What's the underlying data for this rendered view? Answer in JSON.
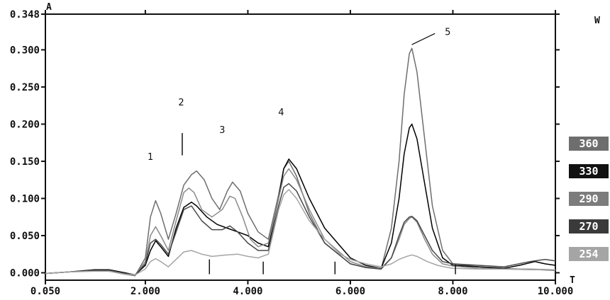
{
  "chart_data": {
    "type": "line",
    "title": "",
    "xlabel": "T",
    "ylabel": "A",
    "right_label": "W",
    "xlim": [
      0.05,
      10.0
    ],
    "ylim": [
      -0.01,
      0.348
    ],
    "x_tick_labels": [
      {
        "value": 0.05,
        "label": "0.050"
      },
      {
        "value": 2.0,
        "label": "2.000"
      },
      {
        "value": 4.0,
        "label": "4.000"
      },
      {
        "value": 6.0,
        "label": "6.000"
      },
      {
        "value": 8.0,
        "label": "8.000"
      },
      {
        "value": 10.0,
        "label": "10.000"
      }
    ],
    "y_tick_labels": [
      {
        "value": 0.348,
        "label": "0.348"
      },
      {
        "value": 0.3,
        "label": "0.300"
      },
      {
        "value": 0.25,
        "label": "0.250"
      },
      {
        "value": 0.2,
        "label": "0.200"
      },
      {
        "value": 0.15,
        "label": "0.150"
      },
      {
        "value": 0.1,
        "label": "0.100"
      },
      {
        "value": 0.05,
        "label": "0.050"
      },
      {
        "value": 0.0,
        "label": "0.000"
      }
    ],
    "grid": false,
    "legend_placement": "right",
    "peak_labels": [
      {
        "label": "1",
        "x": 2.1,
        "y": 0.152
      },
      {
        "label": "2",
        "x": 2.7,
        "y": 0.225
      },
      {
        "label": "3",
        "x": 3.5,
        "y": 0.188
      },
      {
        "label": "4",
        "x": 4.65,
        "y": 0.212
      },
      {
        "label": "5",
        "x": 7.9,
        "y": 0.32
      }
    ],
    "peak_markers": [
      {
        "x": 2.72,
        "y_top": 0.188,
        "y_bottom": 0.158
      },
      {
        "x": 3.25,
        "y_top": 0.018,
        "y_bottom": -0.002
      },
      {
        "x": 4.3,
        "y_top": 0.015,
        "y_bottom": -0.002
      },
      {
        "x": 5.7,
        "y_top": 0.015,
        "y_bottom": -0.002
      },
      {
        "x": 8.05,
        "y_top": 0.011,
        "y_bottom": -0.002
      }
    ],
    "pointer_line": {
      "x1": 7.2,
      "y1": 0.307,
      "x2": 7.65,
      "y2": 0.322
    },
    "series": [
      {
        "name": "360",
        "color": "#6e6e6e",
        "x": [
          0.05,
          0.5,
          1.0,
          1.3,
          1.6,
          1.8,
          2.0,
          2.1,
          2.2,
          2.3,
          2.45,
          2.6,
          2.75,
          2.9,
          3.0,
          3.15,
          3.3,
          3.45,
          3.6,
          3.7,
          3.85,
          4.0,
          4.2,
          4.4,
          4.6,
          4.7,
          4.8,
          4.95,
          5.2,
          5.5,
          6.0,
          6.3,
          6.6,
          6.8,
          6.95,
          7.05,
          7.15,
          7.2,
          7.3,
          7.45,
          7.6,
          7.8,
          8.0,
          8.5,
          9.0,
          9.3,
          9.7,
          10.0
        ],
        "y": [
          -0.001,
          0.001,
          0.003,
          0.002,
          -0.002,
          -0.004,
          0.02,
          0.075,
          0.097,
          0.08,
          0.045,
          0.08,
          0.118,
          0.132,
          0.137,
          0.125,
          0.1,
          0.085,
          0.11,
          0.122,
          0.11,
          0.08,
          0.055,
          0.045,
          0.105,
          0.14,
          0.15,
          0.13,
          0.08,
          0.04,
          0.012,
          0.007,
          0.005,
          0.06,
          0.15,
          0.24,
          0.295,
          0.302,
          0.27,
          0.18,
          0.09,
          0.03,
          0.012,
          0.008,
          0.006,
          0.005,
          0.004,
          0.003
        ]
      },
      {
        "name": "330",
        "color": "#000000",
        "x": [
          0.05,
          0.5,
          1.0,
          1.3,
          1.6,
          1.8,
          2.0,
          2.1,
          2.2,
          2.3,
          2.45,
          2.6,
          2.75,
          2.9,
          3.0,
          3.2,
          3.4,
          3.6,
          3.8,
          4.0,
          4.2,
          4.4,
          4.6,
          4.7,
          4.8,
          4.95,
          5.2,
          5.5,
          6.0,
          6.3,
          6.6,
          6.8,
          6.95,
          7.05,
          7.15,
          7.2,
          7.3,
          7.45,
          7.6,
          7.8,
          8.0,
          8.5,
          9.0,
          9.3,
          9.6,
          9.8,
          10.0
        ],
        "y": [
          -0.001,
          0.001,
          0.004,
          0.004,
          0.0,
          -0.003,
          0.01,
          0.03,
          0.043,
          0.035,
          0.022,
          0.06,
          0.088,
          0.095,
          0.09,
          0.075,
          0.065,
          0.06,
          0.055,
          0.05,
          0.04,
          0.035,
          0.1,
          0.14,
          0.153,
          0.14,
          0.1,
          0.06,
          0.02,
          0.01,
          0.006,
          0.04,
          0.1,
          0.16,
          0.195,
          0.2,
          0.18,
          0.12,
          0.06,
          0.02,
          0.01,
          0.008,
          0.006,
          0.01,
          0.015,
          0.012,
          0.01
        ]
      },
      {
        "name": "290",
        "color": "#8a8a8a",
        "x": [
          0.05,
          0.5,
          1.0,
          1.3,
          1.6,
          1.8,
          2.0,
          2.1,
          2.2,
          2.3,
          2.45,
          2.6,
          2.75,
          2.85,
          2.95,
          3.1,
          3.3,
          3.5,
          3.65,
          3.75,
          3.9,
          4.05,
          4.2,
          4.4,
          4.6,
          4.7,
          4.8,
          4.95,
          5.2,
          5.5,
          6.0,
          6.3,
          6.6,
          6.8,
          6.95,
          7.05,
          7.15,
          7.2,
          7.3,
          7.45,
          7.6,
          7.8,
          8.0,
          8.5,
          9.0,
          9.5,
          10.0
        ],
        "y": [
          -0.001,
          0.001,
          0.003,
          0.003,
          -0.001,
          -0.003,
          0.015,
          0.05,
          0.062,
          0.05,
          0.03,
          0.07,
          0.108,
          0.114,
          0.108,
          0.085,
          0.075,
          0.085,
          0.103,
          0.1,
          0.075,
          0.045,
          0.035,
          0.04,
          0.1,
          0.13,
          0.14,
          0.125,
          0.085,
          0.045,
          0.015,
          0.008,
          0.006,
          0.02,
          0.045,
          0.065,
          0.073,
          0.075,
          0.068,
          0.045,
          0.025,
          0.012,
          0.009,
          0.006,
          0.005,
          0.005,
          0.004
        ]
      },
      {
        "name": "270",
        "color": "#474747",
        "x": [
          0.05,
          0.5,
          1.0,
          1.3,
          1.6,
          1.8,
          2.0,
          2.1,
          2.2,
          2.3,
          2.45,
          2.6,
          2.75,
          2.9,
          3.1,
          3.3,
          3.5,
          3.65,
          3.8,
          4.0,
          4.2,
          4.4,
          4.6,
          4.7,
          4.8,
          4.95,
          5.2,
          5.5,
          6.0,
          6.3,
          6.6,
          6.8,
          6.95,
          7.05,
          7.15,
          7.2,
          7.3,
          7.45,
          7.6,
          7.8,
          8.0,
          8.5,
          9.0,
          9.5,
          9.8,
          10.0
        ],
        "y": [
          -0.001,
          0.001,
          0.003,
          0.003,
          -0.001,
          -0.003,
          0.012,
          0.04,
          0.045,
          0.038,
          0.025,
          0.055,
          0.085,
          0.09,
          0.07,
          0.058,
          0.058,
          0.063,
          0.055,
          0.04,
          0.03,
          0.03,
          0.09,
          0.115,
          0.12,
          0.11,
          0.075,
          0.04,
          0.012,
          0.007,
          0.005,
          0.02,
          0.05,
          0.068,
          0.075,
          0.076,
          0.07,
          0.05,
          0.03,
          0.015,
          0.012,
          0.01,
          0.008,
          0.015,
          0.018,
          0.016
        ]
      },
      {
        "name": "254",
        "color": "#a5a5a5",
        "x": [
          0.05,
          0.5,
          1.0,
          1.3,
          1.6,
          1.8,
          2.0,
          2.1,
          2.2,
          2.3,
          2.45,
          2.6,
          2.75,
          2.9,
          3.1,
          3.3,
          3.6,
          3.8,
          4.0,
          4.2,
          4.4,
          4.6,
          4.7,
          4.8,
          4.95,
          5.2,
          5.5,
          5.8,
          6.0,
          6.3,
          6.6,
          6.8,
          6.95,
          7.1,
          7.2,
          7.3,
          7.5,
          7.7,
          7.9,
          8.0,
          8.5,
          9.0,
          9.5,
          10.0
        ],
        "y": [
          -0.001,
          0.001,
          0.002,
          0.002,
          -0.002,
          -0.003,
          0.005,
          0.015,
          0.019,
          0.015,
          0.008,
          0.018,
          0.028,
          0.03,
          0.025,
          0.022,
          0.024,
          0.025,
          0.022,
          0.02,
          0.025,
          0.085,
          0.105,
          0.112,
          0.1,
          0.07,
          0.045,
          0.025,
          0.018,
          0.012,
          0.008,
          0.012,
          0.018,
          0.022,
          0.024,
          0.022,
          0.015,
          0.01,
          0.007,
          0.006,
          0.005,
          0.005,
          0.004,
          0.004
        ]
      }
    ],
    "legend": [
      {
        "label": "360",
        "bg": "#6e6e6e"
      },
      {
        "label": "330",
        "bg": "#111111"
      },
      {
        "label": "290",
        "bg": "#7c7c7c"
      },
      {
        "label": "270",
        "bg": "#3a3a3a"
      },
      {
        "label": "254",
        "bg": "#a5a5a5"
      }
    ]
  }
}
